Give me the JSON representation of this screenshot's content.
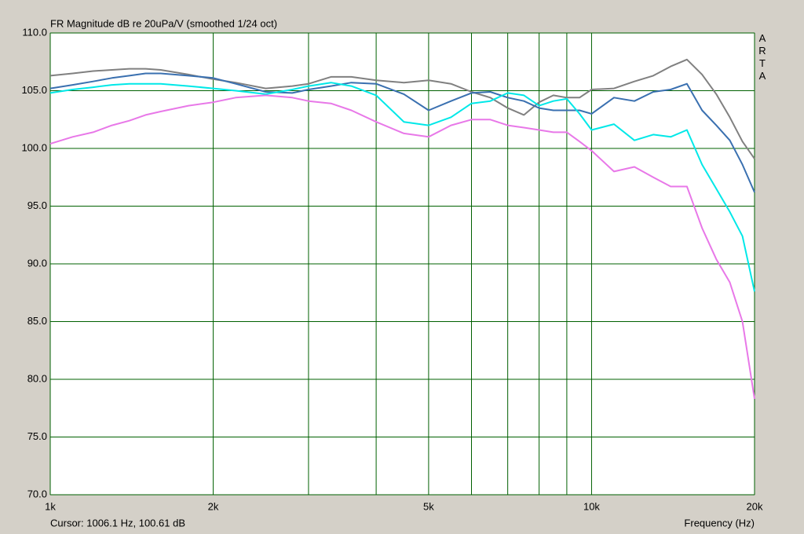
{
  "chart_data": {
    "type": "line",
    "title": "FR Magnitude dB re 20uPa/V (smoothed 1/24 oct)",
    "watermark": "ARTA",
    "cursor_text": "Cursor: 1006.1 Hz, 100.61 dB",
    "x_label": "Frequency (Hz)",
    "x_log": true,
    "grid": true,
    "xlim": [
      1000,
      20000
    ],
    "xticks": [
      {
        "value": 1000,
        "label": "1k"
      },
      {
        "value": 2000,
        "label": "2k"
      },
      {
        "value": 5000,
        "label": "5k"
      },
      {
        "value": 10000,
        "label": "10k"
      },
      {
        "value": 20000,
        "label": "20k"
      }
    ],
    "xminor": [
      3000,
      4000,
      6000,
      7000,
      8000,
      9000
    ],
    "ylim": [
      70,
      110
    ],
    "yticks": [
      {
        "value": 70,
        "label": "70.0"
      },
      {
        "value": 75,
        "label": "75.0"
      },
      {
        "value": 80,
        "label": "80.0"
      },
      {
        "value": 85,
        "label": "85.0"
      },
      {
        "value": 90,
        "label": "90.0"
      },
      {
        "value": 95,
        "label": "95.0"
      },
      {
        "value": 100,
        "label": "100.0"
      },
      {
        "value": 105,
        "label": "105.0"
      },
      {
        "value": 110,
        "label": "110.0"
      }
    ],
    "x": [
      1000,
      1100,
      1200,
      1300,
      1400,
      1500,
      1600,
      1800,
      2000,
      2200,
      2500,
      2800,
      3000,
      3300,
      3600,
      4000,
      4500,
      5000,
      5500,
      6000,
      6500,
      7000,
      7500,
      8000,
      8500,
      9000,
      9500,
      10000,
      11000,
      12000,
      13000,
      14000,
      15000,
      16000,
      17000,
      18000,
      19000,
      20000
    ],
    "series": [
      {
        "color": "#808080",
        "values": [
          106.3,
          106.5,
          106.7,
          106.8,
          106.9,
          106.9,
          106.8,
          106.4,
          106.0,
          105.7,
          105.2,
          105.4,
          105.6,
          106.2,
          106.2,
          105.9,
          105.7,
          105.9,
          105.6,
          104.9,
          104.4,
          103.5,
          102.9,
          104.0,
          104.6,
          104.4,
          104.4,
          105.1,
          105.2,
          105.8,
          106.3,
          107.1,
          107.7,
          106.4,
          104.7,
          102.7,
          100.6,
          99.1
        ]
      },
      {
        "color": "#3a70b0",
        "values": [
          105.2,
          105.5,
          105.8,
          106.1,
          106.3,
          106.5,
          106.5,
          106.3,
          106.1,
          105.6,
          104.9,
          104.8,
          105.1,
          105.4,
          105.7,
          105.6,
          104.7,
          103.3,
          104.1,
          104.8,
          104.9,
          104.4,
          104.1,
          103.5,
          103.3,
          103.3,
          103.3,
          103.0,
          104.4,
          104.1,
          104.9,
          105.1,
          105.6,
          103.3,
          102.0,
          100.7,
          98.6,
          96.2
        ]
      },
      {
        "color": "#00e8e8",
        "values": [
          104.8,
          105.1,
          105.3,
          105.5,
          105.6,
          105.6,
          105.6,
          105.4,
          105.2,
          105.0,
          104.7,
          105.1,
          105.4,
          105.7,
          105.4,
          104.6,
          102.3,
          102.0,
          102.7,
          103.9,
          104.1,
          104.8,
          104.6,
          103.7,
          104.1,
          104.3,
          103.0,
          101.6,
          102.1,
          100.7,
          101.2,
          101.0,
          101.6,
          98.6,
          96.5,
          94.5,
          92.4,
          87.6
        ]
      },
      {
        "color": "#e878e8",
        "values": [
          100.4,
          101.0,
          101.4,
          102.0,
          102.4,
          102.9,
          103.2,
          103.7,
          104.0,
          104.4,
          104.6,
          104.4,
          104.1,
          103.9,
          103.3,
          102.3,
          101.3,
          101.0,
          102.0,
          102.5,
          102.5,
          102.0,
          101.8,
          101.6,
          101.4,
          101.4,
          100.6,
          99.8,
          98.0,
          98.4,
          97.5,
          96.7,
          96.7,
          93.1,
          90.4,
          88.4,
          85.0,
          78.3
        ]
      }
    ]
  }
}
